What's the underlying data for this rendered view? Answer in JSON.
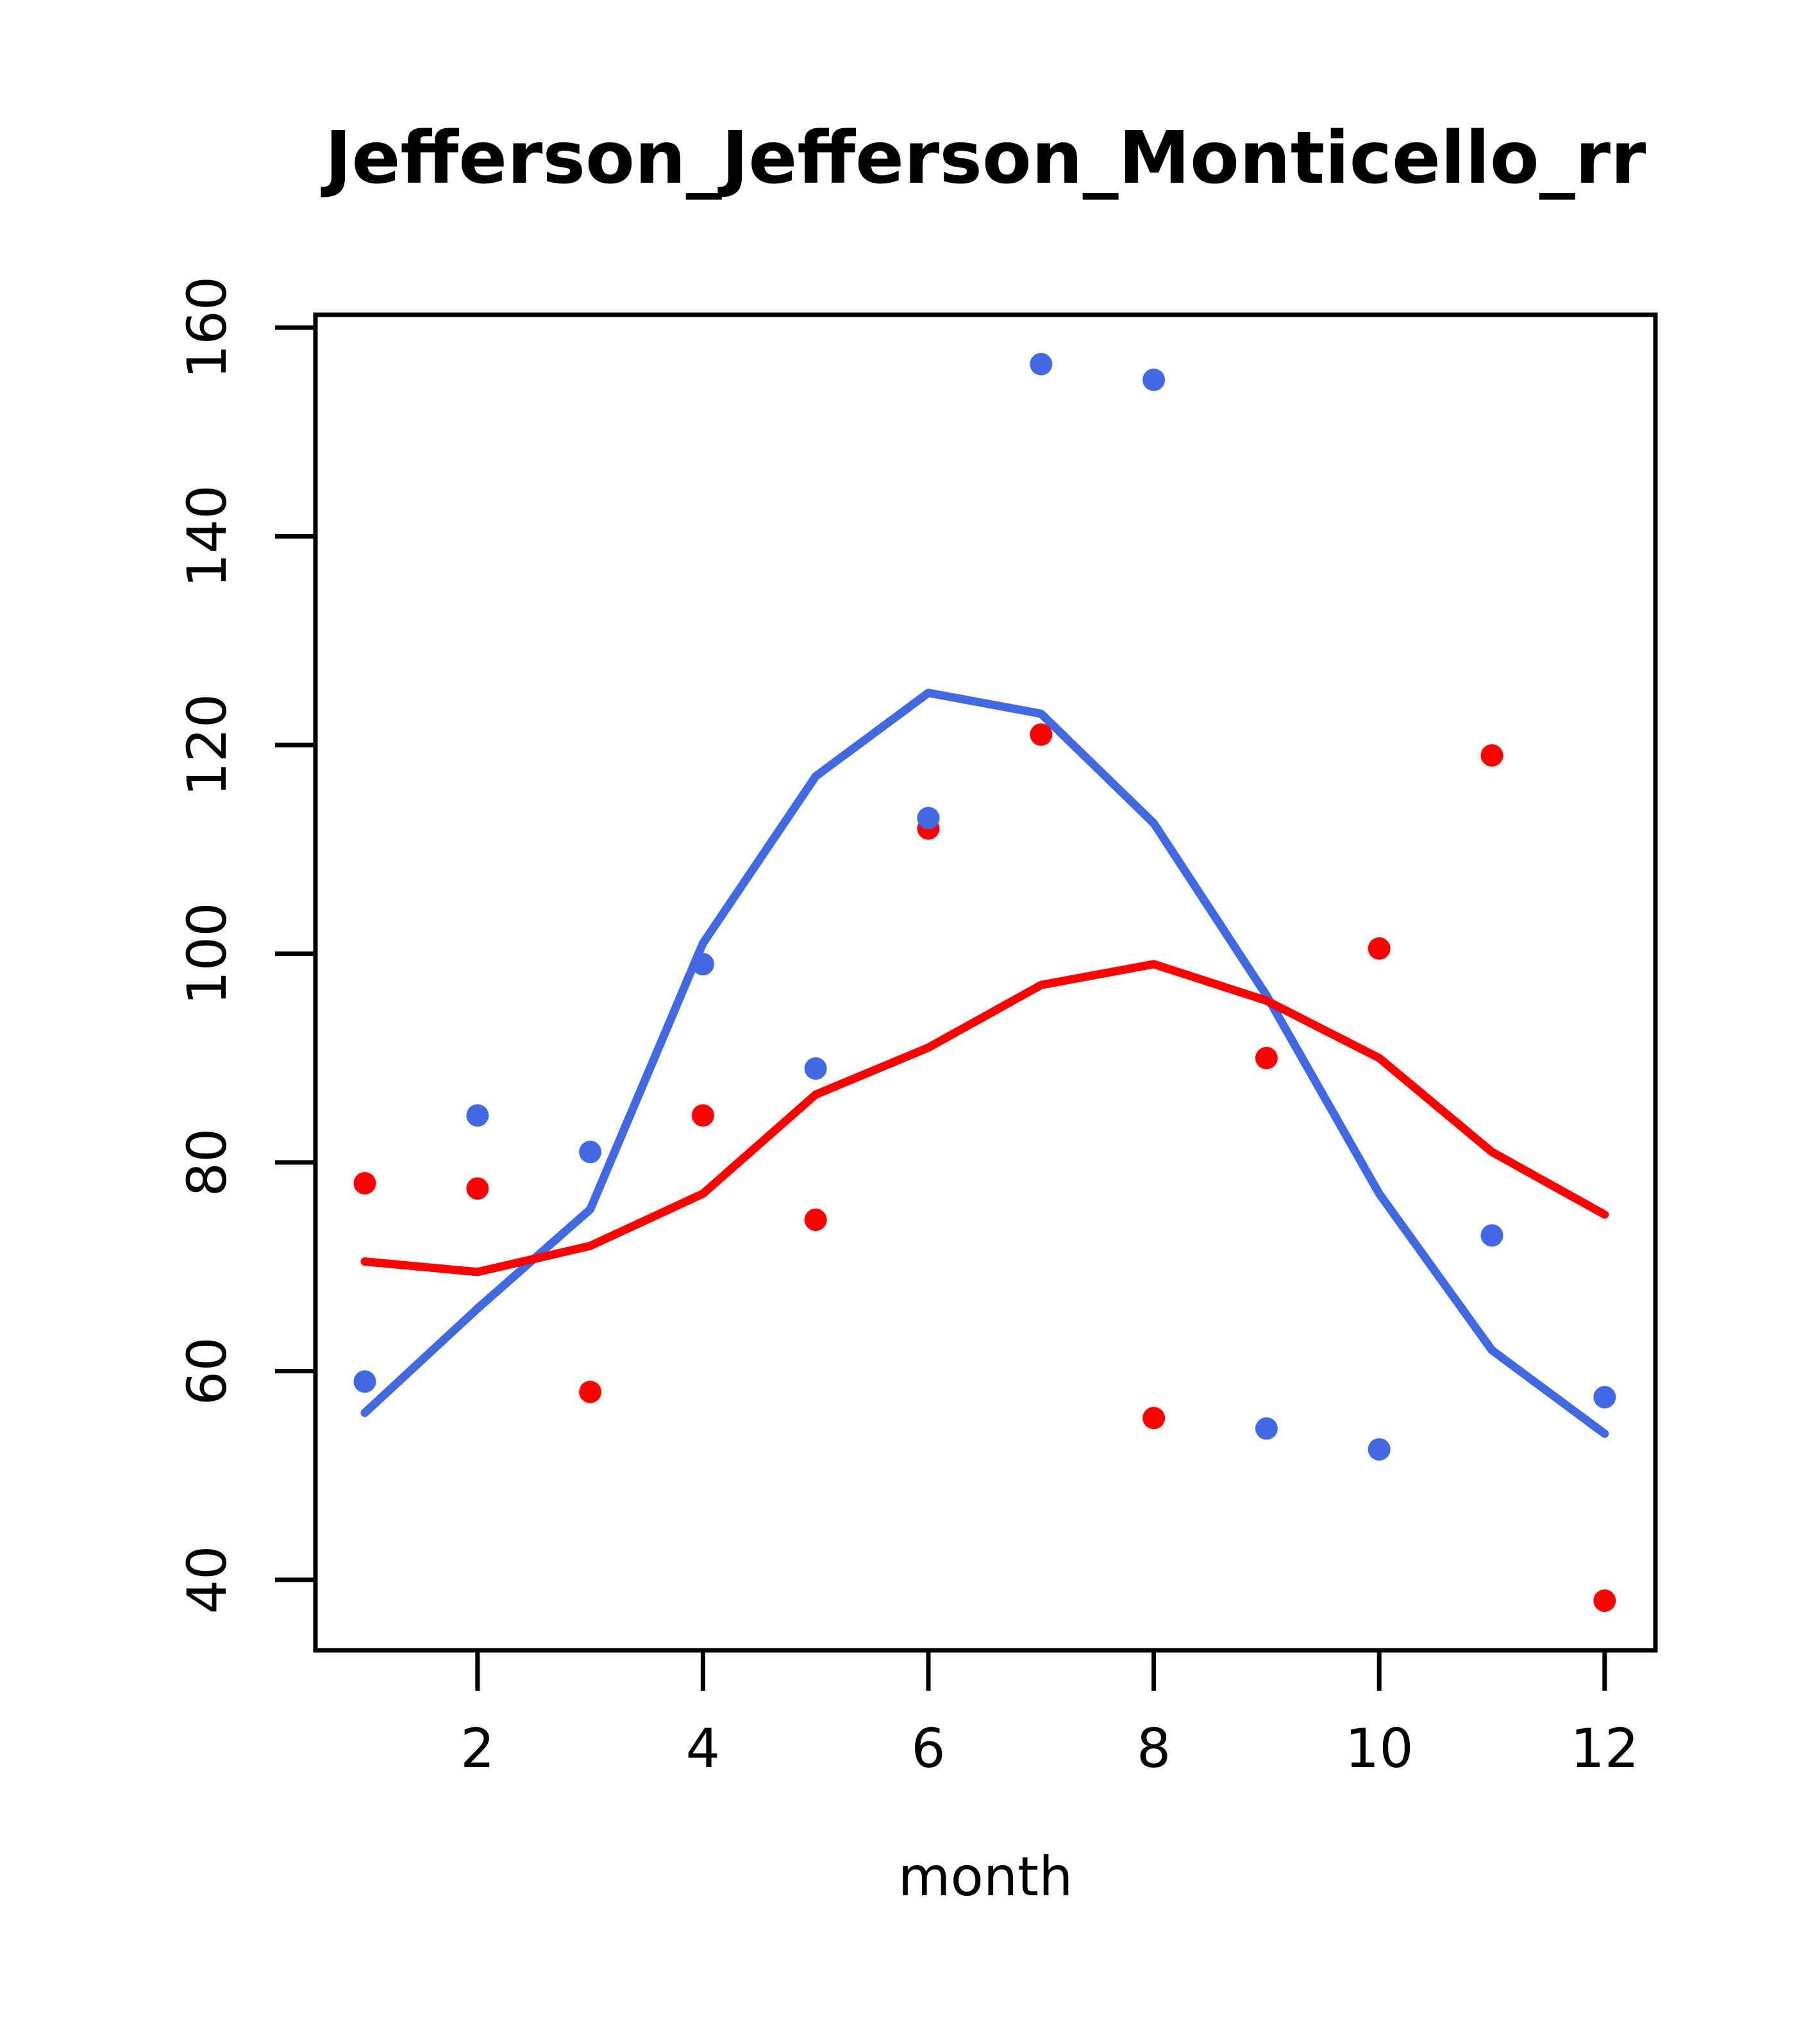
{
  "window": {
    "background": "#ffffff"
  },
  "chart_data": {
    "type": "scatter",
    "title": "Jefferson_Jefferson_Monticello_rr",
    "xlabel": "month",
    "ylabel": "",
    "x": [
      1,
      2,
      3,
      4,
      5,
      6,
      7,
      8,
      9,
      10,
      11,
      12
    ],
    "xticks": [
      2,
      4,
      6,
      8,
      10,
      12
    ],
    "yticks": [
      40,
      60,
      80,
      100,
      120,
      140,
      160
    ],
    "xlim": [
      0.56,
      12.44
    ],
    "ylim": [
      33.2,
      161.3
    ],
    "grid": false,
    "legend": "none",
    "series": [
      {
        "name": "blue_points",
        "kind": "scatter",
        "color": "#4169E1",
        "values": [
          59,
          84.5,
          81,
          99,
          89,
          113,
          156.5,
          155,
          54.5,
          52.5,
          73,
          57.5
        ]
      },
      {
        "name": "red_points",
        "kind": "scatter",
        "color": "#FF0000",
        "values": [
          78,
          77.5,
          58,
          84.5,
          74.5,
          112,
          121,
          55.5,
          90,
          100.5,
          119,
          38
        ]
      },
      {
        "name": "blue_trend_line",
        "kind": "line",
        "color": "#4169E1",
        "values": [
          56,
          66,
          75.5,
          101,
          117,
          125,
          123,
          112.5,
          96,
          77,
          62,
          54
        ]
      },
      {
        "name": "red_trend_line",
        "kind": "line",
        "color": "#FF0000",
        "values": [
          70.5,
          69.5,
          72,
          77,
          86.5,
          91,
          97,
          99,
          95.5,
          90,
          81,
          75
        ]
      }
    ],
    "colors": {
      "axis": "#000000",
      "blue_series": "#4169E1",
      "red_series": "#FF0000"
    }
  }
}
